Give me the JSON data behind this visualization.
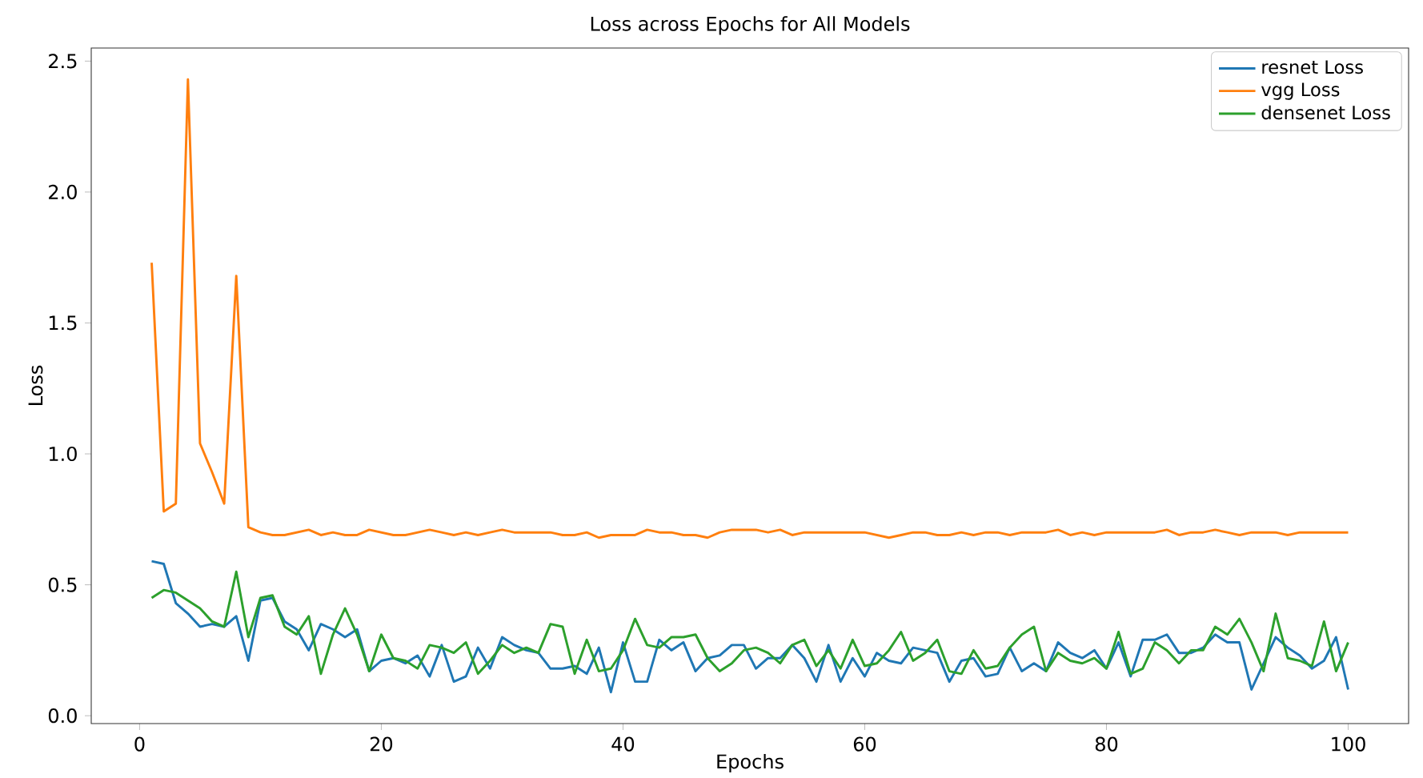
{
  "chart_data": {
    "type": "line",
    "title": "Loss across Epochs for All Models",
    "xlabel": "Epochs",
    "ylabel": "Loss",
    "x": [
      1,
      2,
      3,
      4,
      5,
      6,
      7,
      8,
      9,
      10,
      11,
      12,
      13,
      14,
      15,
      16,
      17,
      18,
      19,
      20,
      21,
      22,
      23,
      24,
      25,
      26,
      27,
      28,
      29,
      30,
      31,
      32,
      33,
      34,
      35,
      36,
      37,
      38,
      39,
      40,
      41,
      42,
      43,
      44,
      45,
      46,
      47,
      48,
      49,
      50,
      51,
      52,
      53,
      54,
      55,
      56,
      57,
      58,
      59,
      60,
      61,
      62,
      63,
      64,
      65,
      66,
      67,
      68,
      69,
      70,
      71,
      72,
      73,
      74,
      75,
      76,
      77,
      78,
      79,
      80,
      81,
      82,
      83,
      84,
      85,
      86,
      87,
      88,
      89,
      90,
      91,
      92,
      93,
      94,
      95,
      96,
      97,
      98,
      99,
      100
    ],
    "series": [
      {
        "name": "resnet Loss",
        "color": "#1f77b4",
        "values": [
          0.59,
          0.58,
          0.43,
          0.39,
          0.34,
          0.35,
          0.34,
          0.38,
          0.21,
          0.44,
          0.45,
          0.36,
          0.33,
          0.25,
          0.35,
          0.33,
          0.3,
          0.33,
          0.17,
          0.21,
          0.22,
          0.2,
          0.23,
          0.15,
          0.27,
          0.13,
          0.15,
          0.26,
          0.18,
          0.3,
          0.27,
          0.25,
          0.24,
          0.18,
          0.18,
          0.19,
          0.16,
          0.26,
          0.09,
          0.28,
          0.13,
          0.13,
          0.29,
          0.25,
          0.28,
          0.17,
          0.22,
          0.23,
          0.27,
          0.27,
          0.18,
          0.22,
          0.22,
          0.27,
          0.22,
          0.13,
          0.27,
          0.13,
          0.22,
          0.15,
          0.24,
          0.21,
          0.2,
          0.26,
          0.25,
          0.24,
          0.13,
          0.21,
          0.22,
          0.15,
          0.16,
          0.26,
          0.17,
          0.2,
          0.17,
          0.28,
          0.24,
          0.22,
          0.25,
          0.18,
          0.28,
          0.15,
          0.29,
          0.29,
          0.31,
          0.24,
          0.24,
          0.26,
          0.31,
          0.28,
          0.28,
          0.1,
          0.2,
          0.3,
          0.26,
          0.23,
          0.18,
          0.21,
          0.3,
          0.1
        ]
      },
      {
        "name": "vgg Loss",
        "color": "#ff7f0e",
        "values": [
          1.73,
          0.78,
          0.81,
          2.43,
          1.04,
          0.93,
          0.81,
          1.68,
          0.72,
          0.7,
          0.69,
          0.69,
          0.7,
          0.71,
          0.69,
          0.7,
          0.69,
          0.69,
          0.71,
          0.7,
          0.69,
          0.69,
          0.7,
          0.71,
          0.7,
          0.69,
          0.7,
          0.69,
          0.7,
          0.71,
          0.7,
          0.7,
          0.7,
          0.7,
          0.69,
          0.69,
          0.7,
          0.68,
          0.69,
          0.69,
          0.69,
          0.71,
          0.7,
          0.7,
          0.69,
          0.69,
          0.68,
          0.7,
          0.71,
          0.71,
          0.71,
          0.7,
          0.71,
          0.69,
          0.7,
          0.7,
          0.7,
          0.7,
          0.7,
          0.7,
          0.69,
          0.68,
          0.69,
          0.7,
          0.7,
          0.69,
          0.69,
          0.7,
          0.69,
          0.7,
          0.7,
          0.69,
          0.7,
          0.7,
          0.7,
          0.71,
          0.69,
          0.7,
          0.69,
          0.7,
          0.7,
          0.7,
          0.7,
          0.7,
          0.71,
          0.69,
          0.7,
          0.7,
          0.71,
          0.7,
          0.69,
          0.7,
          0.7,
          0.7,
          0.69,
          0.7,
          0.7,
          0.7,
          0.7,
          0.7
        ]
      },
      {
        "name": "densenet Loss",
        "color": "#2ca02c",
        "values": [
          0.45,
          0.48,
          0.47,
          0.44,
          0.41,
          0.36,
          0.34,
          0.55,
          0.3,
          0.45,
          0.46,
          0.34,
          0.31,
          0.38,
          0.16,
          0.31,
          0.41,
          0.31,
          0.17,
          0.31,
          0.22,
          0.21,
          0.18,
          0.27,
          0.26,
          0.24,
          0.28,
          0.16,
          0.21,
          0.27,
          0.24,
          0.26,
          0.24,
          0.35,
          0.34,
          0.16,
          0.29,
          0.17,
          0.18,
          0.25,
          0.37,
          0.27,
          0.26,
          0.3,
          0.3,
          0.31,
          0.22,
          0.17,
          0.2,
          0.25,
          0.26,
          0.24,
          0.2,
          0.27,
          0.29,
          0.19,
          0.25,
          0.18,
          0.29,
          0.19,
          0.2,
          0.25,
          0.32,
          0.21,
          0.24,
          0.29,
          0.17,
          0.16,
          0.25,
          0.18,
          0.19,
          0.26,
          0.31,
          0.34,
          0.17,
          0.24,
          0.21,
          0.2,
          0.22,
          0.18,
          0.32,
          0.16,
          0.18,
          0.28,
          0.25,
          0.2,
          0.25,
          0.25,
          0.34,
          0.31,
          0.37,
          0.28,
          0.17,
          0.39,
          0.22,
          0.21,
          0.19,
          0.36,
          0.17,
          0.28
        ]
      }
    ],
    "xlim": [
      -4,
      105
    ],
    "ylim": [
      -0.03,
      2.55
    ],
    "xticks": [
      0,
      20,
      40,
      60,
      80,
      100
    ],
    "yticks": [
      {
        "value": 0,
        "label": "0.0"
      },
      {
        "value": 0.5,
        "label": "0.5"
      },
      {
        "value": 1,
        "label": "1.0"
      },
      {
        "value": 1.5,
        "label": "1.5"
      },
      {
        "value": 2,
        "label": "2.0"
      },
      {
        "value": 2.5,
        "label": "2.5"
      }
    ],
    "legend": "top right",
    "line_style": "solid"
  }
}
